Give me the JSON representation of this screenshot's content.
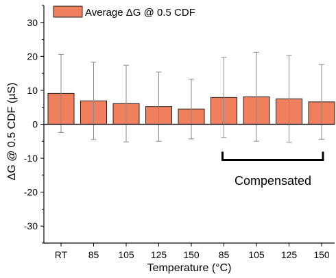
{
  "chart_data": {
    "type": "bar",
    "categories": [
      "RT",
      "85",
      "105",
      "125",
      "150",
      "85",
      "105",
      "125",
      "150"
    ],
    "series": [
      {
        "name": "Average ΔG @ 0.5 CDF",
        "values": [
          9.1,
          6.9,
          6.1,
          5.2,
          4.5,
          7.9,
          8.1,
          7.5,
          6.6
        ],
        "error": [
          11.5,
          11.4,
          11.3,
          10.2,
          8.8,
          11.8,
          13.1,
          12.8,
          11.0
        ]
      }
    ],
    "xlabel": "Temperature (°C)",
    "ylabel": "ΔG @ 0.5 CDF (µS)",
    "ylim": [
      -35,
      35
    ],
    "yticks": [
      -30,
      -20,
      -10,
      0,
      10,
      20,
      30
    ],
    "grid": false,
    "legend_position": "top-left",
    "bar_color": "#ef7f5d",
    "annotation": {
      "text": "Compensated",
      "bracket_from_index": 5,
      "bracket_to_index": 8,
      "bracket_y": -10.5
    }
  }
}
